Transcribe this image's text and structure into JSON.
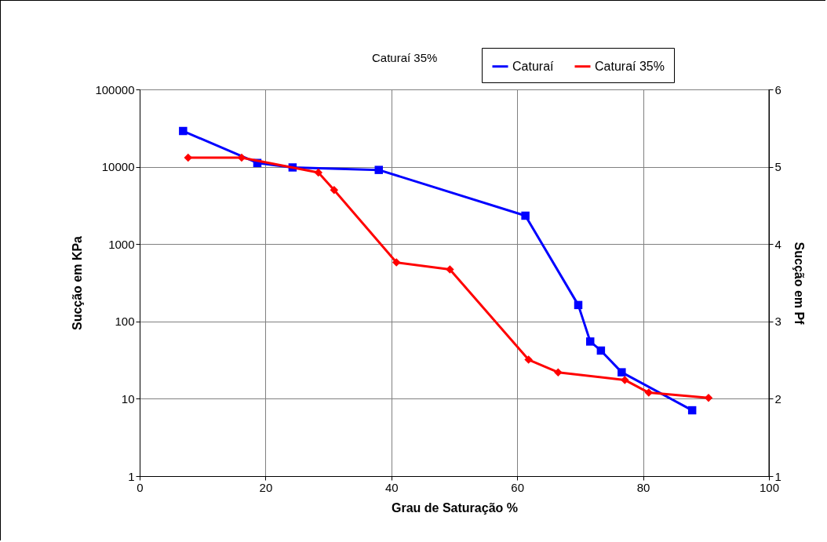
{
  "chart_data": {
    "type": "line",
    "xlabel": "Grau de Saturação %",
    "ylabel": "Sucção em KPa",
    "y2label": "Sucção em Pf",
    "annotations": [
      "Caturaí 35%"
    ],
    "xlim": [
      0,
      100
    ],
    "xticks": [
      0,
      20,
      40,
      60,
      80,
      100
    ],
    "ylim": [
      1,
      100000
    ],
    "yticks": [
      1,
      10,
      100,
      1000,
      10000,
      100000
    ],
    "log": "y",
    "y2lim": [
      1,
      6
    ],
    "y2ticks": [
      1,
      2,
      3,
      4,
      5,
      6
    ],
    "grid": true,
    "legend": "top right",
    "series": [
      {
        "name": "Caturaí",
        "color": "#0000ff",
        "marker": "square",
        "x": [
          6.9,
          18.7,
          24.3,
          38.0,
          61.3,
          69.7,
          71.6,
          73.3,
          76.6,
          87.8
        ],
        "values": [
          29000,
          11200,
          9800,
          9100,
          2330,
          163,
          55,
          42,
          22,
          7.1
        ]
      },
      {
        "name": "Caturaí 35%",
        "color": "#ff0000",
        "marker": "diamond",
        "x": [
          7.7,
          16.2,
          28.4,
          30.9,
          40.8,
          49.3,
          61.8,
          66.5,
          77.1,
          80.9,
          90.4
        ],
        "values": [
          13100,
          13100,
          8400,
          5000,
          580,
          470,
          32,
          22,
          17.5,
          12,
          10.3
        ]
      }
    ]
  }
}
